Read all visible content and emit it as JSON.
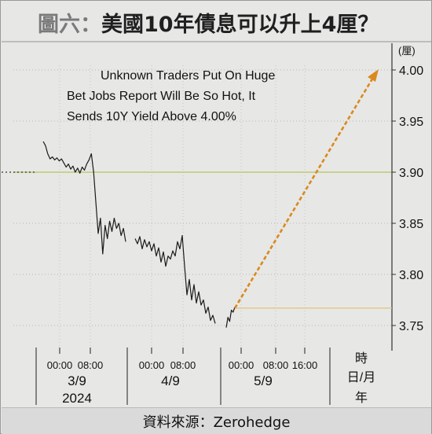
{
  "header": {
    "label": "圖六：",
    "title": "美國10年債息可以升上4厘？"
  },
  "source": "資料來源：Zerohedge",
  "chart_data": {
    "type": "line",
    "title": "Unknown Traders Put On Huge Bet Jobs Report Will Be So Hot, It Sends 10Y Yield Above 4.00%",
    "annotation_lines": [
      "Unknown Traders Put On Huge",
      "Bet Jobs Report Will Be So Hot, It",
      "Sends 10Y Yield Above 4.00%"
    ],
    "y_unit": "(厘)",
    "ylim": [
      3.73,
      4.02
    ],
    "yticks": [
      "4.00",
      "3.95",
      "3.90",
      "3.85",
      "3.80",
      "3.75"
    ],
    "ytick_values": [
      4.0,
      3.95,
      3.9,
      3.85,
      3.8,
      3.75
    ],
    "x_time_ticks": [
      "00:00",
      "08:00",
      "00:00",
      "08:00",
      "00:00",
      "08:00",
      "16:00"
    ],
    "x_date_labels": [
      "3/9",
      "4/9",
      "5/9"
    ],
    "x_year_label": "2024",
    "x_unit_lines": [
      "時",
      "日/月",
      "年"
    ],
    "reference_level": 3.9,
    "projection_start": 3.767,
    "projection_end": 4.0,
    "series": [
      {
        "values": [
          3.93,
          3.926,
          3.918,
          3.913,
          3.915,
          3.912,
          3.914,
          3.911,
          3.913,
          3.909,
          3.905,
          3.908,
          3.903,
          3.906,
          3.9,
          3.904,
          3.899,
          3.905,
          3.902,
          3.908,
          3.912,
          3.918,
          3.9,
          3.87,
          3.84,
          3.855,
          3.82,
          3.848,
          3.835,
          3.852,
          3.842,
          3.855,
          3.845,
          3.85,
          3.838,
          3.845,
          3.832,
          3.835,
          3.83,
          3.837,
          3.825,
          3.834,
          3.827,
          3.832,
          3.823,
          3.83,
          3.818,
          3.826,
          3.812,
          3.822,
          3.808,
          3.818,
          3.815,
          3.823,
          3.818,
          3.832,
          3.825,
          3.838,
          3.808,
          3.78,
          3.795,
          3.775,
          3.79,
          3.772,
          3.783,
          3.77,
          3.775,
          3.762,
          3.768,
          3.755,
          3.76,
          3.752,
          3.748,
          3.758,
          3.754,
          3.765,
          3.763,
          3.768
        ]
      }
    ]
  }
}
